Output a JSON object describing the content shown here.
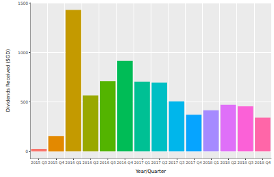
{
  "chart_data": {
    "type": "bar",
    "x_label": "Year/Quarter",
    "y_label": "Dividends Received (SGD)",
    "categories": [
      "2015 Q3",
      "2015 Q4",
      "2016 Q1",
      "2016 Q2",
      "2016 Q3",
      "2016 Q4",
      "2017 Q1",
      "2017 Q2",
      "2017 Q3",
      "2017 Q4",
      "2018 Q1",
      "2018 Q2",
      "2018 Q3",
      "2018 Q4"
    ],
    "values": [
      25,
      155,
      1430,
      565,
      710,
      915,
      705,
      695,
      505,
      370,
      415,
      470,
      455,
      340
    ],
    "colors": [
      "#F8766D",
      "#E38900",
      "#C49A00",
      "#99A800",
      "#53B400",
      "#00BC56",
      "#00C094",
      "#00BFC4",
      "#00B6EB",
      "#06A4FF",
      "#A58AFF",
      "#DF70F8",
      "#FB61D7",
      "#FF66A8"
    ],
    "ylim": [
      -72,
      1502
    ],
    "yticks": [
      0,
      500,
      1000,
      1500
    ],
    "grid": true
  }
}
